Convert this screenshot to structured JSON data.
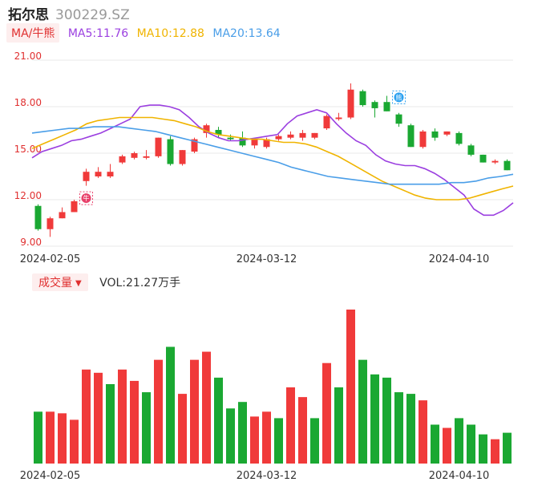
{
  "header": {
    "name": "拓尔思",
    "code": "300229.SZ"
  },
  "ma_legend": {
    "tag": "MA/牛熊",
    "items": [
      {
        "label": "MA5:11.76",
        "color": "#9b3fe0"
      },
      {
        "label": "MA10:12.88",
        "color": "#f0b400"
      },
      {
        "label": "MA20:13.64",
        "color": "#4a9ee8"
      }
    ]
  },
  "volume_legend": {
    "tag": "成交量",
    "value": "VOL:21.27万手"
  },
  "colors": {
    "up": "#f03a3a",
    "down": "#1aa832",
    "grid": "#e8e8e8",
    "axis_text": "#e03030"
  },
  "icons": {
    "bull_marker": "牛",
    "bear_marker": "熊"
  },
  "chart_data": [
    {
      "type": "candlestick",
      "y_ticks": [
        "21.00",
        "18.00",
        "15.00",
        "12.00",
        "9.00"
      ],
      "ylim": [
        9,
        21
      ],
      "x_tick_labels": [
        "2024-02-05",
        "2024-03-12",
        "2024-04-10"
      ],
      "x_tick_index": [
        1,
        19,
        35
      ],
      "grid": true,
      "candles": [
        {
          "o": 11.6,
          "h": 11.7,
          "l": 10.0,
          "c": 10.1
        },
        {
          "o": 10.1,
          "h": 10.9,
          "l": 9.6,
          "c": 10.8
        },
        {
          "o": 10.8,
          "h": 11.5,
          "l": 10.8,
          "c": 11.2
        },
        {
          "o": 11.2,
          "h": 12.0,
          "l": 11.2,
          "c": 11.9
        },
        {
          "o": 13.2,
          "h": 14.0,
          "l": 12.9,
          "c": 13.8
        },
        {
          "o": 13.5,
          "h": 14.1,
          "l": 13.4,
          "c": 13.8
        },
        {
          "o": 13.5,
          "h": 14.3,
          "l": 13.4,
          "c": 13.8
        },
        {
          "o": 14.4,
          "h": 14.9,
          "l": 14.3,
          "c": 14.8
        },
        {
          "o": 14.7,
          "h": 15.1,
          "l": 14.6,
          "c": 15.0
        },
        {
          "o": 14.7,
          "h": 15.2,
          "l": 14.6,
          "c": 14.8
        },
        {
          "o": 14.8,
          "h": 16.0,
          "l": 14.7,
          "c": 16.0
        },
        {
          "o": 15.9,
          "h": 16.1,
          "l": 14.2,
          "c": 14.3
        },
        {
          "o": 14.3,
          "h": 15.2,
          "l": 14.2,
          "c": 15.2
        },
        {
          "o": 15.1,
          "h": 16.0,
          "l": 15.0,
          "c": 15.9
        },
        {
          "o": 16.3,
          "h": 16.9,
          "l": 16.0,
          "c": 16.8
        },
        {
          "o": 16.5,
          "h": 16.7,
          "l": 16.0,
          "c": 16.2
        },
        {
          "o": 16.0,
          "h": 16.2,
          "l": 15.8,
          "c": 15.9
        },
        {
          "o": 16.0,
          "h": 16.4,
          "l": 15.4,
          "c": 15.5
        },
        {
          "o": 15.5,
          "h": 15.9,
          "l": 15.3,
          "c": 15.9
        },
        {
          "o": 15.4,
          "h": 16.0,
          "l": 15.3,
          "c": 15.9
        },
        {
          "o": 15.9,
          "h": 16.2,
          "l": 15.8,
          "c": 16.1
        },
        {
          "o": 16.0,
          "h": 16.4,
          "l": 15.9,
          "c": 16.2
        },
        {
          "o": 16.0,
          "h": 16.5,
          "l": 15.8,
          "c": 16.3
        },
        {
          "o": 16.0,
          "h": 16.3,
          "l": 15.9,
          "c": 16.3
        },
        {
          "o": 16.6,
          "h": 17.5,
          "l": 16.5,
          "c": 17.4
        },
        {
          "o": 17.2,
          "h": 17.6,
          "l": 17.1,
          "c": 17.3
        },
        {
          "o": 17.3,
          "h": 19.5,
          "l": 17.2,
          "c": 19.1
        },
        {
          "o": 19.0,
          "h": 19.1,
          "l": 18.0,
          "c": 18.1
        },
        {
          "o": 18.3,
          "h": 18.4,
          "l": 17.3,
          "c": 17.9
        },
        {
          "o": 18.3,
          "h": 18.7,
          "l": 17.7,
          "c": 17.7
        },
        {
          "o": 17.5,
          "h": 17.6,
          "l": 16.7,
          "c": 16.9
        },
        {
          "o": 16.8,
          "h": 16.9,
          "l": 15.4,
          "c": 15.4
        },
        {
          "o": 15.4,
          "h": 16.5,
          "l": 15.3,
          "c": 16.4
        },
        {
          "o": 16.4,
          "h": 16.6,
          "l": 15.8,
          "c": 16.0
        },
        {
          "o": 16.2,
          "h": 16.4,
          "l": 16.1,
          "c": 16.4
        },
        {
          "o": 16.3,
          "h": 16.4,
          "l": 15.5,
          "c": 15.6
        },
        {
          "o": 15.5,
          "h": 15.6,
          "l": 14.8,
          "c": 14.9
        },
        {
          "o": 14.9,
          "h": 14.9,
          "l": 14.4,
          "c": 14.4
        },
        {
          "o": 14.4,
          "h": 14.6,
          "l": 14.3,
          "c": 14.5
        },
        {
          "o": 14.5,
          "h": 14.6,
          "l": 13.9,
          "c": 13.9
        }
      ],
      "series": [
        {
          "name": "MA5",
          "color": "#9b3fe0",
          "values": [
            14.7,
            15.1,
            15.3,
            15.5,
            15.8,
            15.9,
            16.1,
            16.3,
            16.6,
            16.9,
            17.2,
            18.0,
            18.1,
            18.1,
            18.0,
            17.8,
            17.3,
            16.7,
            16.3,
            16.0,
            15.8,
            15.8,
            15.9,
            16.0,
            16.1,
            16.2,
            16.9,
            17.4,
            17.6,
            17.8,
            17.6,
            16.9,
            16.3,
            15.8,
            15.5,
            14.9,
            14.5,
            14.3,
            14.2,
            14.2,
            14.0,
            13.7,
            13.3,
            12.8,
            12.3,
            11.4,
            11.0,
            11.0,
            11.3,
            11.8
          ]
        },
        {
          "name": "MA10",
          "color": "#f0b400",
          "values": [
            15.3,
            15.6,
            15.9,
            16.2,
            16.5,
            16.9,
            17.1,
            17.2,
            17.3,
            17.3,
            17.3,
            17.3,
            17.2,
            17.1,
            16.9,
            16.7,
            16.4,
            16.2,
            16.1,
            16.0,
            15.9,
            15.9,
            15.8,
            15.7,
            15.7,
            15.6,
            15.4,
            15.1,
            14.8,
            14.4,
            14.0,
            13.6,
            13.2,
            12.9,
            12.6,
            12.3,
            12.1,
            12.0,
            12.0,
            12.0,
            12.1,
            12.3,
            12.5,
            12.7,
            12.88
          ]
        },
        {
          "name": "MA20",
          "color": "#4a9ee8",
          "values": [
            16.3,
            16.4,
            16.5,
            16.6,
            16.6,
            16.7,
            16.7,
            16.7,
            16.6,
            16.5,
            16.4,
            16.2,
            16.0,
            15.8,
            15.6,
            15.4,
            15.2,
            15.0,
            14.8,
            14.6,
            14.4,
            14.1,
            13.9,
            13.7,
            13.5,
            13.4,
            13.3,
            13.2,
            13.1,
            13.0,
            13.0,
            13.0,
            13.0,
            13.0,
            13.1,
            13.1,
            13.2,
            13.4,
            13.5,
            13.64
          ]
        }
      ],
      "markers": [
        {
          "index": 4,
          "price": 12.1,
          "label_key": "bull_marker",
          "color": "#e8406a"
        },
        {
          "index": 30,
          "price": 18.6,
          "label_key": "bear_marker",
          "color": "#2aa0f0"
        }
      ]
    },
    {
      "type": "bar",
      "name": "成交量",
      "x_tick_labels": [
        "2024-02-05",
        "2024-03-12",
        "2024-04-10"
      ],
      "x_tick_index": [
        1,
        19,
        35
      ],
      "values": [
        [
          32,
          "down"
        ],
        [
          32,
          "up"
        ],
        [
          31,
          "up"
        ],
        [
          27,
          "up"
        ],
        [
          58,
          "up"
        ],
        [
          56,
          "up"
        ],
        [
          49,
          "down"
        ],
        [
          58,
          "up"
        ],
        [
          51,
          "up"
        ],
        [
          44,
          "down"
        ],
        [
          64,
          "up"
        ],
        [
          72,
          "down"
        ],
        [
          43,
          "up"
        ],
        [
          64,
          "up"
        ],
        [
          69,
          "up"
        ],
        [
          53,
          "down"
        ],
        [
          34,
          "down"
        ],
        [
          38,
          "down"
        ],
        [
          29,
          "up"
        ],
        [
          32,
          "up"
        ],
        [
          28,
          "down"
        ],
        [
          47,
          "up"
        ],
        [
          41,
          "up"
        ],
        [
          28,
          "down"
        ],
        [
          62,
          "up"
        ],
        [
          47,
          "down"
        ],
        [
          95,
          "up"
        ],
        [
          64,
          "down"
        ],
        [
          55,
          "down"
        ],
        [
          53,
          "down"
        ],
        [
          44,
          "down"
        ],
        [
          43,
          "down"
        ],
        [
          39,
          "up"
        ],
        [
          24,
          "down"
        ],
        [
          22,
          "up"
        ],
        [
          28,
          "down"
        ],
        [
          24,
          "down"
        ],
        [
          18,
          "down"
        ],
        [
          15,
          "up"
        ],
        [
          19,
          "down"
        ]
      ]
    }
  ]
}
